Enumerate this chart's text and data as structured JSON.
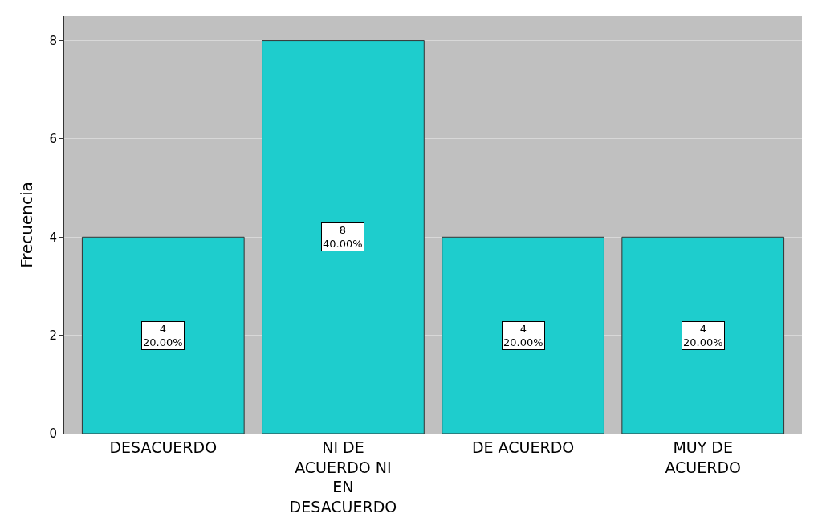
{
  "chart_data": {
    "type": "bar",
    "ylabel": "Frecuencia",
    "categories": [
      "DESACUERDO",
      "NI DE ACUERDO NI EN DESACUERDO",
      "DE ACUERDO",
      "MUY DE ACUERDO"
    ],
    "values": [
      4,
      8,
      4,
      4
    ],
    "color": "#1ecdcd",
    "value_labels": [
      "4\n20.00%",
      "8\n40.00%",
      "4\n20.00%",
      "4\n20.00%"
    ],
    "ylim": [
      0,
      8.5
    ],
    "yticks": [
      0,
      2,
      4,
      6,
      8
    ],
    "grid": "y"
  }
}
